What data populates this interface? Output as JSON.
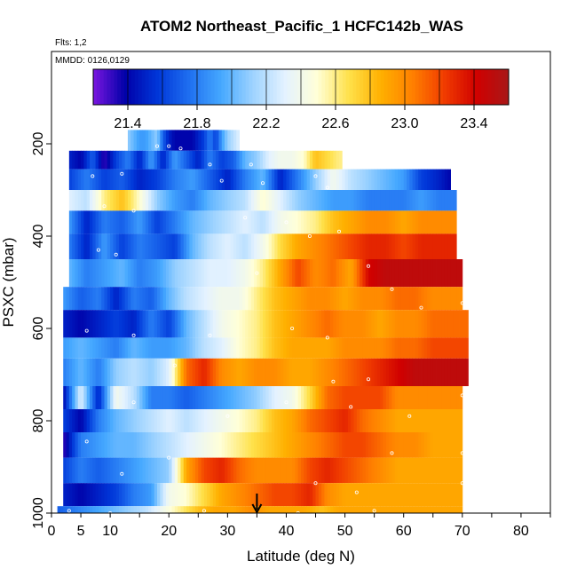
{
  "chart_data": {
    "type": "heatmap",
    "title": "ATOM2 Northeast_Pacific_1 HCFC142b_WAS",
    "flights_label": "Flts: 1,2",
    "dates_label": "MMDD: 0126,0129",
    "xlabel": "Latitude (deg N)",
    "ylabel": "PSXC (mbar)",
    "xlim": [
      0,
      85
    ],
    "ylim": [
      1000,
      0
    ],
    "x_ticks": [
      0,
      5,
      10,
      20,
      30,
      40,
      50,
      60,
      70,
      80
    ],
    "x_tick_labels": [
      "0",
      "5",
      "10",
      "20",
      "30",
      "40",
      "50",
      "60",
      "70",
      "80"
    ],
    "y_ticks": [
      200,
      400,
      600,
      800,
      1000
    ],
    "y_tick_labels": [
      "200",
      "400",
      "600",
      "800",
      "1000"
    ],
    "colorbar": {
      "min": 21.2,
      "max": 23.6,
      "ticks": [
        21.4,
        21.8,
        22.2,
        22.6,
        23.0,
        23.4
      ],
      "tick_labels": [
        "21.4",
        "21.8",
        "22.2",
        "22.6",
        "23.0",
        "23.4"
      ],
      "palette": [
        "#7b16e0",
        "#0000a8",
        "#0036d8",
        "#1f6ff0",
        "#45a8ff",
        "#9ed3ff",
        "#e4f2ff",
        "#ffffd8",
        "#ffe14a",
        "#ffb000",
        "#ff7f00",
        "#f03b00",
        "#d00000",
        "#a81818"
      ]
    },
    "arrow_marker_latitude": 35,
    "bands": [
      {
        "pmin": 170,
        "pmax": 215,
        "lat": [
          13,
          14,
          15,
          16,
          17,
          18,
          19,
          20,
          21,
          22,
          23,
          24,
          25,
          26,
          27,
          28,
          29,
          30,
          31,
          32
        ],
        "val": [
          22.1,
          22.0,
          21.9,
          21.9,
          22.0,
          22.1,
          21.7,
          21.5,
          21.4,
          21.4,
          21.4,
          21.4,
          21.5,
          21.6,
          21.8,
          21.6,
          21.9,
          22.1,
          22.2,
          22.3
        ]
      },
      {
        "pmin": 215,
        "pmax": 255,
        "lat": [
          3,
          5,
          7,
          9,
          11,
          13,
          15,
          17,
          19,
          21,
          23,
          25,
          27,
          29,
          31,
          33,
          35,
          37,
          39,
          41,
          43,
          45,
          47,
          49,
          49.5
        ],
        "val": [
          21.5,
          21.4,
          21.7,
          21.3,
          21.6,
          21.8,
          21.5,
          21.9,
          21.5,
          21.9,
          21.7,
          21.5,
          21.8,
          21.6,
          21.7,
          22.0,
          22.1,
          22.3,
          22.4,
          22.4,
          22.5,
          22.8,
          22.7,
          22.6,
          22.6
        ]
      },
      {
        "pmin": 255,
        "pmax": 300,
        "lat": [
          3,
          6,
          9,
          12,
          15,
          18,
          21,
          24,
          27,
          30,
          33,
          36,
          39,
          42,
          45,
          48,
          51,
          54,
          57,
          60,
          63,
          66,
          68
        ],
        "val": [
          21.6,
          21.8,
          21.6,
          21.7,
          21.5,
          21.6,
          21.8,
          21.9,
          21.7,
          21.5,
          21.8,
          22.0,
          21.5,
          21.8,
          22.1,
          22.4,
          22.2,
          22.1,
          22.0,
          21.9,
          21.6,
          21.5,
          21.4
        ]
      },
      {
        "pmin": 300,
        "pmax": 345,
        "lat": [
          3,
          6,
          9,
          12,
          15,
          18,
          21,
          24,
          27,
          30,
          33,
          36,
          39,
          42,
          45,
          48,
          51,
          54,
          57,
          60,
          63,
          66,
          69
        ],
        "val": [
          22.3,
          22.2,
          22.6,
          22.8,
          22.5,
          22.1,
          21.9,
          21.8,
          22.0,
          22.1,
          22.2,
          22.5,
          22.3,
          22.1,
          22.0,
          21.9,
          21.9,
          21.8,
          21.8,
          21.8,
          21.9,
          21.8,
          21.8
        ]
      },
      {
        "pmin": 345,
        "pmax": 395,
        "lat": [
          3,
          6,
          9,
          12,
          15,
          18,
          21,
          24,
          27,
          30,
          33,
          36,
          39,
          42,
          45,
          48,
          51,
          54,
          57,
          60,
          63,
          66,
          69
        ],
        "val": [
          21.9,
          21.5,
          21.8,
          21.7,
          21.9,
          21.6,
          21.8,
          22.0,
          22.1,
          22.2,
          22.3,
          22.2,
          22.4,
          22.5,
          22.6,
          22.8,
          22.9,
          23.0,
          23.0,
          22.9,
          23.0,
          23.0,
          23.0
        ]
      },
      {
        "pmin": 395,
        "pmax": 450,
        "lat": [
          3,
          6,
          9,
          12,
          15,
          18,
          21,
          24,
          27,
          30,
          33,
          36,
          39,
          42,
          45,
          48,
          51,
          54,
          57,
          60,
          63,
          66,
          69
        ],
        "val": [
          21.8,
          21.5,
          21.9,
          21.6,
          21.8,
          21.7,
          21.6,
          22.0,
          22.2,
          22.3,
          22.2,
          22.4,
          22.7,
          22.9,
          23.0,
          23.1,
          23.2,
          23.3,
          23.3,
          23.2,
          23.3,
          23.3,
          23.3
        ]
      },
      {
        "pmin": 450,
        "pmax": 510,
        "lat": [
          3,
          6,
          9,
          12,
          15,
          18,
          21,
          24,
          27,
          30,
          33,
          36,
          39,
          42,
          45,
          48,
          51,
          54,
          57,
          60,
          63,
          66,
          70
        ],
        "val": [
          22.0,
          21.8,
          21.9,
          22.0,
          21.8,
          21.9,
          22.1,
          22.2,
          22.3,
          22.3,
          22.4,
          22.6,
          22.9,
          23.2,
          23.0,
          23.1,
          22.9,
          23.4,
          23.5,
          23.5,
          23.5,
          23.5,
          23.5
        ]
      },
      {
        "pmin": 510,
        "pmax": 560,
        "lat": [
          2,
          5,
          8,
          11,
          14,
          17,
          20,
          23,
          26,
          29,
          32,
          35,
          38,
          41,
          44,
          47,
          50,
          53,
          56,
          59,
          62,
          65,
          70
        ],
        "val": [
          21.9,
          21.7,
          21.8,
          21.5,
          21.8,
          21.7,
          22.0,
          22.2,
          22.3,
          22.4,
          22.4,
          22.6,
          22.8,
          22.9,
          23.0,
          23.0,
          22.9,
          23.0,
          23.0,
          23.1,
          23.1,
          23.0,
          23.0
        ]
      },
      {
        "pmin": 560,
        "pmax": 620,
        "lat": [
          2,
          5,
          8,
          11,
          14,
          17,
          20,
          23,
          26,
          29,
          32,
          35,
          38,
          41,
          44,
          47,
          50,
          53,
          56,
          59,
          62,
          65,
          71
        ],
        "val": [
          21.5,
          21.4,
          21.5,
          21.6,
          21.5,
          21.8,
          21.6,
          22.0,
          22.2,
          22.4,
          22.5,
          22.6,
          22.8,
          22.9,
          23.0,
          23.1,
          23.0,
          23.0,
          22.9,
          23.0,
          23.0,
          23.1,
          23.1
        ]
      },
      {
        "pmin": 620,
        "pmax": 665,
        "lat": [
          2,
          5,
          8,
          11,
          14,
          17,
          20,
          23,
          26,
          29,
          32,
          35,
          38,
          41,
          44,
          47,
          50,
          53,
          56,
          59,
          62,
          65,
          71
        ],
        "val": [
          21.9,
          22.0,
          21.9,
          21.8,
          22.0,
          21.9,
          21.9,
          22.0,
          22.2,
          22.3,
          22.5,
          22.6,
          22.8,
          22.9,
          22.9,
          22.9,
          23.0,
          23.0,
          23.0,
          23.1,
          23.1,
          23.2,
          23.2
        ]
      },
      {
        "pmin": 665,
        "pmax": 725,
        "lat": [
          2,
          5,
          8,
          11,
          14,
          17,
          20,
          23,
          26,
          29,
          32,
          35,
          38,
          41,
          44,
          47,
          50,
          53,
          56,
          59,
          62,
          65,
          71
        ],
        "val": [
          21.8,
          22.0,
          21.8,
          22.1,
          22.2,
          22.1,
          22.3,
          23.1,
          23.3,
          23.0,
          22.9,
          23.0,
          23.0,
          22.9,
          22.9,
          23.0,
          23.1,
          23.2,
          23.3,
          23.4,
          23.5,
          23.5,
          23.5
        ]
      },
      {
        "pmin": 725,
        "pmax": 775,
        "lat": [
          2,
          5,
          8,
          11,
          14,
          17,
          20,
          23,
          26,
          29,
          32,
          35,
          38,
          41,
          44,
          47,
          50,
          53,
          56,
          59,
          62,
          65,
          70
        ],
        "val": [
          21.4,
          22.3,
          21.5,
          22.4,
          22.2,
          21.8,
          21.8,
          21.7,
          21.8,
          21.9,
          22.0,
          22.1,
          22.3,
          22.4,
          22.7,
          23.1,
          23.2,
          23.2,
          23.2,
          23.0,
          23.0,
          23.0,
          23.0
        ]
      },
      {
        "pmin": 775,
        "pmax": 825,
        "lat": [
          2,
          5,
          8,
          11,
          14,
          17,
          20,
          23,
          26,
          29,
          32,
          35,
          38,
          41,
          44,
          47,
          50,
          53,
          56,
          59,
          62,
          65,
          70
        ],
        "val": [
          21.6,
          21.4,
          21.8,
          22.0,
          22.1,
          22.2,
          22.3,
          22.2,
          22.3,
          22.4,
          22.5,
          22.6,
          22.8,
          22.9,
          23.1,
          23.2,
          23.3,
          23.1,
          23.0,
          22.9,
          22.9,
          22.9,
          22.9
        ]
      },
      {
        "pmin": 825,
        "pmax": 880,
        "lat": [
          2,
          5,
          8,
          11,
          14,
          17,
          20,
          23,
          26,
          29,
          32,
          35,
          38,
          41,
          44,
          47,
          50,
          53,
          56,
          59,
          62,
          65,
          70
        ],
        "val": [
          21.3,
          21.8,
          21.9,
          22.0,
          22.0,
          22.1,
          22.2,
          22.3,
          22.4,
          22.5,
          22.6,
          22.7,
          22.8,
          22.9,
          23.0,
          23.1,
          23.2,
          23.2,
          23.1,
          23.0,
          23.0,
          22.9,
          22.9
        ]
      },
      {
        "pmin": 880,
        "pmax": 935,
        "lat": [
          2,
          5,
          8,
          11,
          14,
          17,
          20,
          23,
          26,
          29,
          32,
          35,
          38,
          41,
          44,
          47,
          50,
          53,
          56,
          59,
          62,
          65,
          70
        ],
        "val": [
          21.6,
          21.8,
          21.7,
          21.8,
          21.9,
          22.0,
          22.1,
          22.9,
          23.2,
          23.3,
          23.1,
          23.0,
          23.0,
          23.0,
          23.2,
          23.3,
          23.2,
          23.1,
          23.0,
          22.9,
          22.9,
          22.9,
          22.9
        ]
      },
      {
        "pmin": 935,
        "pmax": 985,
        "lat": [
          2,
          5,
          8,
          11,
          14,
          17,
          20,
          23,
          26,
          29,
          32,
          35,
          38,
          41,
          44,
          47,
          50,
          53,
          56,
          59,
          62,
          65,
          70
        ],
        "val": [
          21.5,
          21.4,
          21.5,
          21.6,
          21.8,
          21.9,
          22.4,
          22.5,
          22.7,
          22.9,
          23.0,
          23.1,
          23.2,
          23.2,
          23.3,
          23.0,
          22.9,
          22.9,
          22.9,
          22.9,
          22.9,
          22.9,
          22.9
        ]
      },
      {
        "pmin": 985,
        "pmax": 1010,
        "lat": [
          1,
          4,
          7,
          10,
          13,
          16,
          19,
          22,
          25,
          28,
          31,
          34,
          37,
          40,
          43,
          46,
          49,
          52,
          55,
          58,
          61,
          64,
          70
        ],
        "val": [
          21.7,
          21.8,
          21.9,
          22.0,
          22.1,
          22.2,
          22.4,
          22.6,
          22.8,
          22.9,
          22.9,
          23.0,
          22.9,
          22.9,
          22.9,
          22.8,
          22.9,
          22.9,
          22.9,
          22.9,
          22.9,
          22.9,
          22.9
        ]
      }
    ],
    "points": [
      [
        18,
        205
      ],
      [
        20,
        205
      ],
      [
        22,
        210
      ],
      [
        27,
        245
      ],
      [
        34,
        245
      ],
      [
        7,
        270
      ],
      [
        12,
        265
      ],
      [
        29,
        280
      ],
      [
        36,
        285
      ],
      [
        45,
        270
      ],
      [
        47,
        295
      ],
      [
        9,
        335
      ],
      [
        14,
        345
      ],
      [
        33,
        360
      ],
      [
        40,
        370
      ],
      [
        44,
        400
      ],
      [
        49,
        390
      ],
      [
        8,
        430
      ],
      [
        11,
        440
      ],
      [
        35,
        480
      ],
      [
        54,
        465
      ],
      [
        58,
        515
      ],
      [
        63,
        555
      ],
      [
        70,
        545
      ],
      [
        6,
        605
      ],
      [
        14,
        615
      ],
      [
        27,
        615
      ],
      [
        41,
        600
      ],
      [
        47,
        620
      ],
      [
        21,
        680
      ],
      [
        48,
        715
      ],
      [
        54,
        710
      ],
      [
        14,
        760
      ],
      [
        30,
        790
      ],
      [
        40,
        760
      ],
      [
        51,
        770
      ],
      [
        61,
        790
      ],
      [
        70,
        745
      ],
      [
        6,
        845
      ],
      [
        20,
        880
      ],
      [
        58,
        870
      ],
      [
        70,
        870
      ],
      [
        12,
        915
      ],
      [
        45,
        935
      ],
      [
        52,
        955
      ],
      [
        70,
        935
      ],
      [
        3,
        995
      ],
      [
        10,
        1000
      ],
      [
        26,
        995
      ],
      [
        42,
        1000
      ],
      [
        55,
        995
      ]
    ]
  }
}
